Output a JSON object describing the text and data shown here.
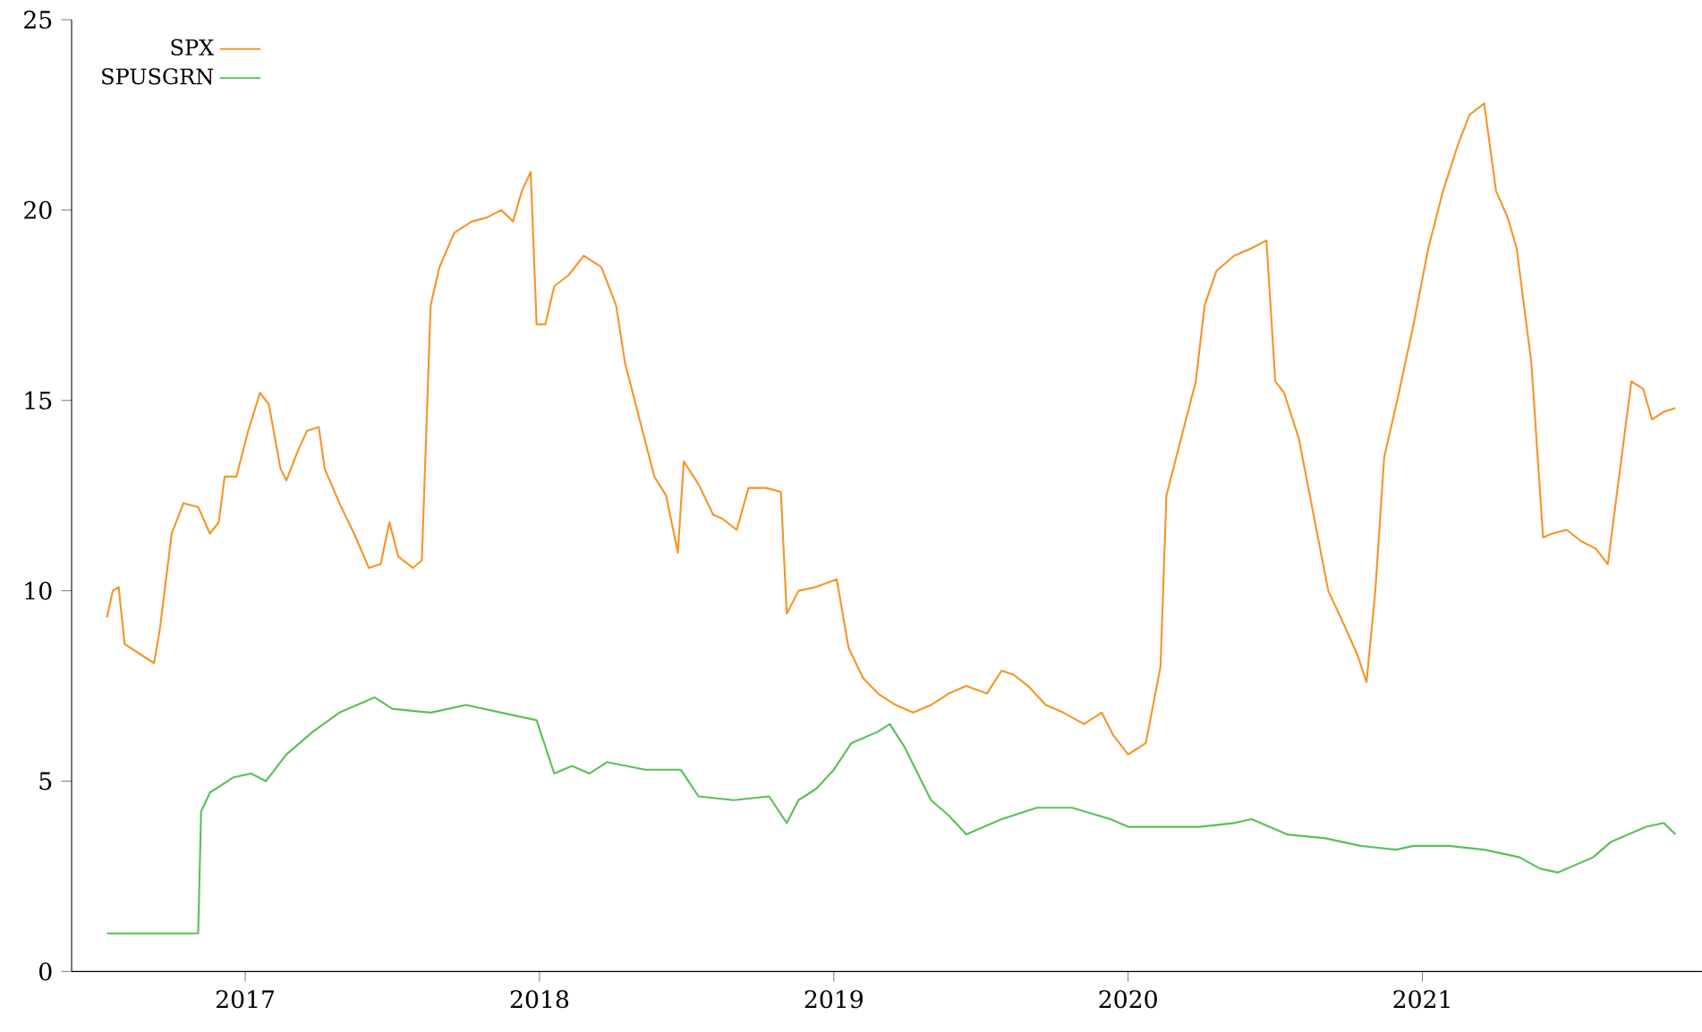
{
  "chart_data": {
    "type": "line",
    "xlim": [
      2016.41,
      2021.95
    ],
    "ylim": [
      0,
      25
    ],
    "xticks": [
      2017,
      2018,
      2019,
      2020,
      2021
    ],
    "yticks": [
      0,
      5,
      10,
      15,
      20,
      25
    ],
    "grid": false,
    "legend": "top left",
    "series": [
      {
        "name": "SPX",
        "color": "#f5962a",
        "x": [
          2016.53,
          2016.55,
          2016.57,
          2016.59,
          2016.65,
          2016.69,
          2016.71,
          2016.75,
          2016.79,
          2016.84,
          2016.88,
          2016.91,
          2016.93,
          2016.97,
          2017.01,
          2017.05,
          2017.08,
          2017.12,
          2017.14,
          2017.18,
          2017.21,
          2017.25,
          2017.27,
          2017.32,
          2017.37,
          2017.42,
          2017.46,
          2017.49,
          2017.52,
          2017.57,
          2017.6,
          2017.63,
          2017.66,
          2017.71,
          2017.77,
          2017.82,
          2017.87,
          2017.91,
          2017.94,
          2017.97,
          2017.99,
          2018.02,
          2018.05,
          2018.1,
          2018.15,
          2018.21,
          2018.26,
          2018.29,
          2018.34,
          2018.39,
          2018.43,
          2018.47,
          2018.49,
          2018.54,
          2018.59,
          2018.62,
          2018.67,
          2018.71,
          2018.77,
          2018.82,
          2018.84,
          2018.88,
          2018.94,
          2019.01,
          2019.05,
          2019.1,
          2019.15,
          2019.21,
          2019.27,
          2019.33,
          2019.39,
          2019.45,
          2019.52,
          2019.57,
          2019.61,
          2019.66,
          2019.72,
          2019.78,
          2019.85,
          2019.91,
          2019.95,
          2020.0,
          2020.06,
          2020.11,
          2020.13,
          2020.18,
          2020.23,
          2020.26,
          2020.3,
          2020.36,
          2020.42,
          2020.47,
          2020.5,
          2020.53,
          2020.58,
          2020.63,
          2020.68,
          2020.74,
          2020.78,
          2020.81,
          2020.84,
          2020.87,
          2020.92,
          2020.97,
          2021.02,
          2021.07,
          2021.12,
          2021.16,
          2021.21,
          2021.25,
          2021.29,
          2021.32,
          2021.37,
          2021.41,
          2021.44,
          2021.49,
          2021.54,
          2021.59,
          2021.63,
          2021.66,
          2021.71,
          2021.75,
          2021.78,
          2021.82,
          2021.86
        ],
        "values": [
          9.3,
          10.0,
          10.1,
          8.6,
          8.3,
          8.1,
          9.0,
          11.5,
          12.3,
          12.2,
          11.5,
          11.8,
          13.0,
          13.0,
          14.2,
          15.2,
          14.9,
          13.2,
          12.9,
          13.7,
          14.2,
          14.3,
          13.2,
          12.3,
          11.5,
          10.6,
          10.7,
          11.8,
          10.9,
          10.6,
          10.8,
          17.5,
          18.5,
          19.4,
          19.7,
          19.8,
          20.0,
          19.7,
          20.5,
          21.0,
          17.0,
          17.0,
          18.0,
          18.3,
          18.8,
          18.5,
          17.5,
          16.0,
          14.5,
          13.0,
          12.5,
          11.0,
          13.4,
          12.8,
          12.0,
          11.9,
          11.6,
          12.7,
          12.7,
          12.6,
          9.4,
          10.0,
          10.1,
          10.3,
          8.5,
          7.7,
          7.3,
          7.0,
          6.8,
          7.0,
          7.3,
          7.5,
          7.3,
          7.9,
          7.8,
          7.5,
          7.0,
          6.8,
          6.5,
          6.8,
          6.2,
          5.7,
          6.0,
          8.0,
          12.5,
          14.0,
          15.5,
          17.5,
          18.4,
          18.8,
          19.0,
          19.2,
          15.5,
          15.2,
          14.0,
          12.0,
          10.0,
          9.0,
          8.3,
          7.6,
          10.0,
          13.5,
          15.2,
          17.0,
          19.0,
          20.5,
          21.7,
          22.5,
          22.8,
          20.5,
          19.8,
          19.0,
          16.0,
          11.4,
          11.5,
          11.6,
          11.3,
          11.1,
          10.7,
          12.5,
          15.5,
          15.3,
          14.5,
          14.7,
          14.8
        ]
      },
      {
        "name": "SPUSGRN",
        "color": "#5cbf5c",
        "x": [
          2016.53,
          2016.84,
          2016.85,
          2016.88,
          2016.96,
          2017.02,
          2017.07,
          2017.14,
          2017.23,
          2017.32,
          2017.44,
          2017.5,
          2017.63,
          2017.75,
          2017.87,
          2017.99,
          2018.05,
          2018.11,
          2018.17,
          2018.23,
          2018.36,
          2018.48,
          2018.54,
          2018.66,
          2018.78,
          2018.84,
          2018.88,
          2018.94,
          2019.0,
          2019.06,
          2019.15,
          2019.19,
          2019.24,
          2019.33,
          2019.39,
          2019.45,
          2019.57,
          2019.69,
          2019.81,
          2019.94,
          2020.0,
          2020.12,
          2020.24,
          2020.36,
          2020.42,
          2020.54,
          2020.67,
          2020.79,
          2020.91,
          2020.97,
          2021.09,
          2021.21,
          2021.33,
          2021.4,
          2021.46,
          2021.52,
          2021.58,
          2021.64,
          2021.76,
          2021.82,
          2021.86
        ],
        "values": [
          1.0,
          1.0,
          4.2,
          4.7,
          5.1,
          5.2,
          5.0,
          5.7,
          6.3,
          6.8,
          7.2,
          6.9,
          6.8,
          7.0,
          6.8,
          6.6,
          5.2,
          5.4,
          5.2,
          5.5,
          5.3,
          5.3,
          4.6,
          4.5,
          4.6,
          3.9,
          4.5,
          4.8,
          5.3,
          6.0,
          6.3,
          6.5,
          5.9,
          4.5,
          4.1,
          3.6,
          4.0,
          4.3,
          4.3,
          4.0,
          3.8,
          3.8,
          3.8,
          3.9,
          4.0,
          3.6,
          3.5,
          3.3,
          3.2,
          3.3,
          3.3,
          3.2,
          3.0,
          2.7,
          2.6,
          2.8,
          3.0,
          3.4,
          3.8,
          3.9,
          3.6
        ]
      }
    ]
  }
}
